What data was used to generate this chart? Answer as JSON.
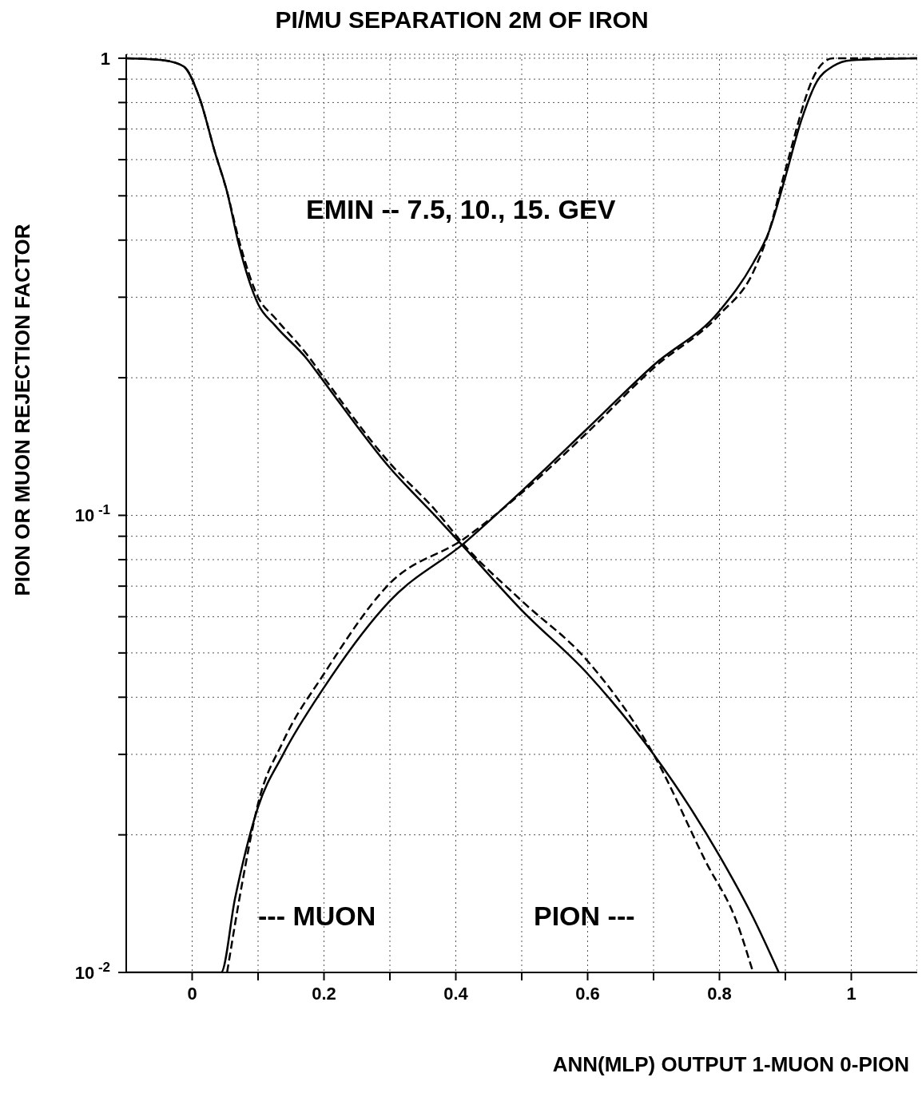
{
  "chart_data": {
    "type": "line",
    "title": "PI/MU SEPARATION 2M OF IRON",
    "xlabel": "ANN(MLP) OUTPUT  1-MUON 0-PION",
    "ylabel": "PION OR MUON REJECTION FACTOR",
    "log": "y",
    "grid": true,
    "legend": false,
    "marker": "none",
    "xlim": [
      -0.1,
      1.1
    ],
    "ylim": [
      0.01,
      1.02
    ],
    "xticks": [
      0,
      {
        "value": 0.1,
        "label": null
      },
      0.2,
      {
        "value": 0.3,
        "label": null
      },
      0.4,
      {
        "value": 0.5,
        "label": null
      },
      0.6,
      {
        "value": 0.7,
        "label": null
      },
      0.8,
      {
        "value": 0.9,
        "label": null
      },
      1
    ],
    "yticks": [
      {
        "value": 0.01,
        "label": "10$^{-2}$"
      },
      {
        "value": 0.02,
        "label": null
      },
      {
        "value": 0.03,
        "label": null
      },
      {
        "value": 0.04,
        "label": null
      },
      {
        "value": 0.05,
        "label": null
      },
      {
        "value": 0.06,
        "label": null
      },
      {
        "value": 0.07,
        "label": null
      },
      {
        "value": 0.08,
        "label": null
      },
      {
        "value": 0.09,
        "label": null
      },
      {
        "value": 0.1,
        "label": "10$^{-1}$"
      },
      {
        "value": 0.2,
        "label": null
      },
      {
        "value": 0.3,
        "label": null
      },
      {
        "value": 0.4,
        "label": null
      },
      {
        "value": 0.5,
        "label": null
      },
      {
        "value": 0.6,
        "label": null
      },
      {
        "value": 0.7,
        "label": null
      },
      {
        "value": 0.8,
        "label": null
      },
      {
        "value": 0.9,
        "label": null
      },
      1
    ],
    "annotations": [
      "EMIN -- 7.5, 10., 15. GEV",
      "--- MUON",
      "PION ---"
    ],
    "series": [
      {
        "color": "#000000",
        "line_style": "solid",
        "x": [
          -0.1,
          -0.044,
          -0.013,
          0.011,
          0.035,
          0.053,
          0.071,
          0.1,
          0.126,
          0.174,
          0.2,
          0.3,
          0.368,
          0.413,
          0.5,
          0.6,
          0.7,
          0.755,
          0.8,
          0.851,
          0.89
        ],
        "values": [
          1.0,
          0.99,
          0.96,
          0.82,
          0.62,
          0.51,
          0.39,
          0.29,
          0.26,
          0.22,
          0.196,
          0.127,
          0.1,
          0.085,
          0.062,
          0.045,
          0.03,
          0.023,
          0.018,
          0.0132,
          0.01
        ]
      },
      {
        "color": "#000000",
        "line_style": "dashed",
        "x": [
          -0.1,
          -0.044,
          -0.013,
          0.011,
          0.035,
          0.053,
          0.071,
          0.1,
          0.126,
          0.174,
          0.2,
          0.3,
          0.368,
          0.413,
          0.5,
          0.6,
          0.7,
          0.779,
          0.827,
          0.851
        ],
        "values": [
          1.0,
          0.99,
          0.96,
          0.82,
          0.62,
          0.51,
          0.4,
          0.3,
          0.27,
          0.225,
          0.2,
          0.13,
          0.103,
          0.086,
          0.065,
          0.048,
          0.03,
          0.0175,
          0.0128,
          0.01
        ]
      },
      {
        "color": "#000000",
        "line_style": "solid",
        "x": [
          -0.1,
          0.044,
          0.065,
          0.1,
          0.138,
          0.2,
          0.3,
          0.413,
          0.5,
          0.6,
          0.7,
          0.8,
          0.851,
          0.875,
          0.9,
          0.924,
          0.948,
          0.972,
          1.0,
          1.1
        ],
        "values": [
          0.01,
          0.01,
          0.0145,
          0.023,
          0.03,
          0.042,
          0.065,
          0.087,
          0.113,
          0.155,
          0.213,
          0.28,
          0.356,
          0.417,
          0.55,
          0.73,
          0.89,
          0.96,
          0.99,
          1.0
        ]
      },
      {
        "color": "#000000",
        "line_style": "dashed",
        "x": [
          0.053,
          0.077,
          0.1,
          0.138,
          0.2,
          0.3,
          0.413,
          0.5,
          0.6,
          0.7,
          0.8,
          0.851,
          0.875,
          0.9,
          0.948,
          0.972,
          1.0,
          1.1
        ],
        "values": [
          0.01,
          0.016,
          0.0234,
          0.032,
          0.045,
          0.071,
          0.089,
          0.112,
          0.152,
          0.21,
          0.275,
          0.34,
          0.417,
          0.57,
          0.94,
          1.0,
          1.0,
          1.0
        ]
      }
    ]
  }
}
